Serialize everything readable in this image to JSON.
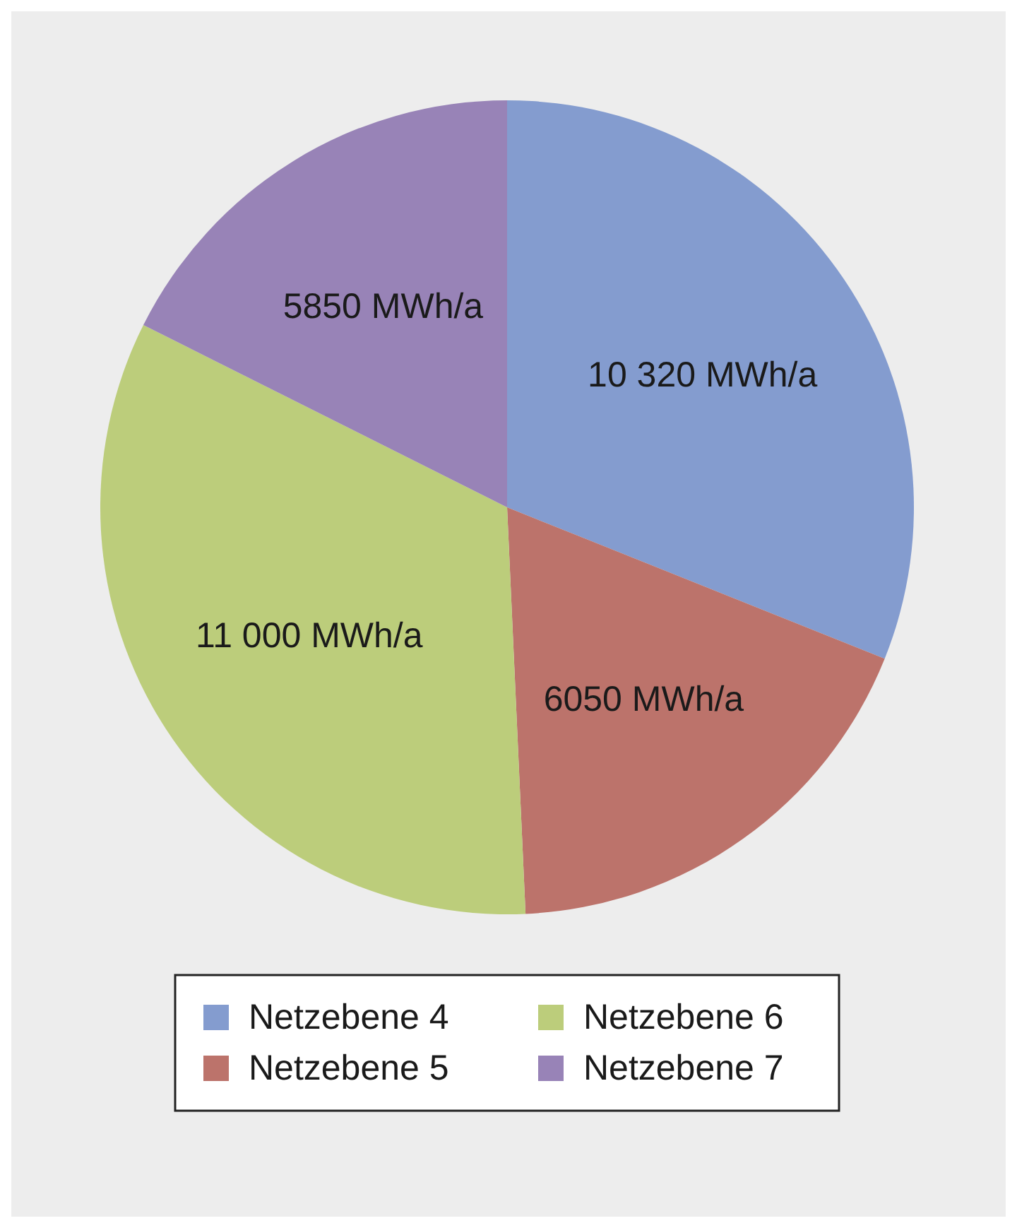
{
  "chart_data": {
    "type": "pie",
    "categories": [
      "Netzebene 4",
      "Netzebene 5",
      "Netzebene 6",
      "Netzebene 7"
    ],
    "values": [
      10320,
      6050,
      11000,
      5850
    ],
    "value_labels": [
      "10 320 MWh/a",
      "6050 MWh/a",
      "11 000 MWh/a",
      "5850 MWh/a"
    ],
    "colors": [
      "#849ccf",
      "#bc736b",
      "#bccd7b",
      "#9883b7"
    ],
    "legend": "bottom"
  }
}
